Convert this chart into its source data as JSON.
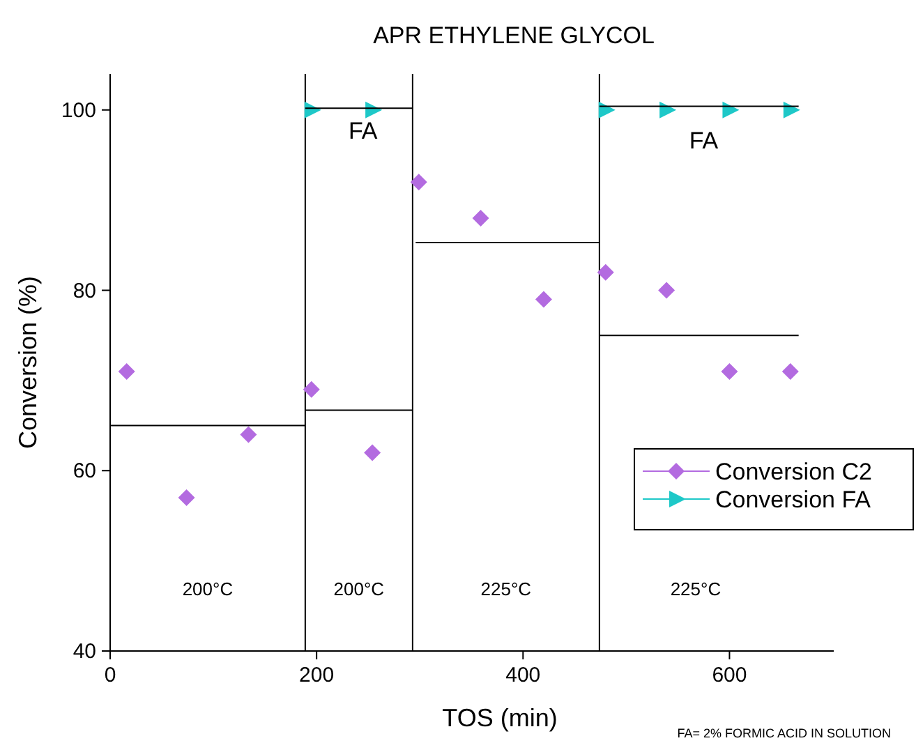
{
  "chart_data": {
    "type": "scatter",
    "title": "APR ETHYLENE GLYCOL",
    "xlabel": "TOS (min)",
    "ylabel": "Conversion (%)",
    "xlim": [
      0,
      701
    ],
    "ylim": [
      40,
      104
    ],
    "xticks": [
      0,
      200,
      400,
      600
    ],
    "yticks": [
      40,
      60,
      80,
      100
    ],
    "grid": false,
    "legend": "right",
    "series": [
      {
        "name": "Conversion C2",
        "color": "#b36be0",
        "marker": "diamond",
        "x": [
          16,
          74,
          134,
          195,
          254,
          299,
          359,
          420,
          480,
          539,
          600,
          659
        ],
        "values": [
          71,
          57,
          64,
          69,
          62,
          92,
          88,
          79,
          82,
          80,
          71,
          71
        ]
      },
      {
        "name": "Conversion FA",
        "color": "#1ec8c8",
        "marker": "triangle",
        "x": [
          195,
          254,
          480,
          539,
          600,
          659
        ],
        "values": [
          100,
          100,
          100,
          100,
          100,
          100
        ]
      },
      {
        "type": "line",
        "color": "#000000",
        "marker": "none",
        "x": [
          0,
          189
        ],
        "values": [
          65,
          65
        ]
      },
      {
        "type": "line",
        "color": "#000000",
        "marker": "none",
        "x": [
          189,
          293
        ],
        "values": [
          66.7,
          66.7
        ]
      },
      {
        "type": "line",
        "color": "#000000",
        "marker": "none",
        "x": [
          296,
          474
        ],
        "values": [
          85.3,
          85.3
        ]
      },
      {
        "type": "line",
        "color": "#000000",
        "marker": "none",
        "x": [
          474,
          667
        ],
        "values": [
          75,
          75
        ]
      },
      {
        "type": "line",
        "color": "#000000",
        "marker": "none",
        "x": [
          189,
          293
        ],
        "values": [
          100.2,
          100.2
        ]
      },
      {
        "type": "line",
        "color": "#000000",
        "marker": "none",
        "x": [
          474,
          667
        ],
        "values": [
          100.4,
          100.4
        ]
      }
    ],
    "ref_lines": [
      {
        "axis": "x",
        "value": 189,
        "color": "#000000"
      },
      {
        "axis": "x",
        "value": 293,
        "color": "#000000"
      },
      {
        "axis": "x",
        "value": 474,
        "color": "#000000"
      }
    ],
    "annotations": [
      "200°C",
      "200°C",
      "225°C",
      "225°C",
      {
        "text": "FA",
        "x": 245,
        "y": 100.2
      },
      {
        "text": "FA",
        "x": 575,
        "y": 100.4
      },
      "FA= 2% FORMIC ACID IN SOLUTION"
    ]
  }
}
